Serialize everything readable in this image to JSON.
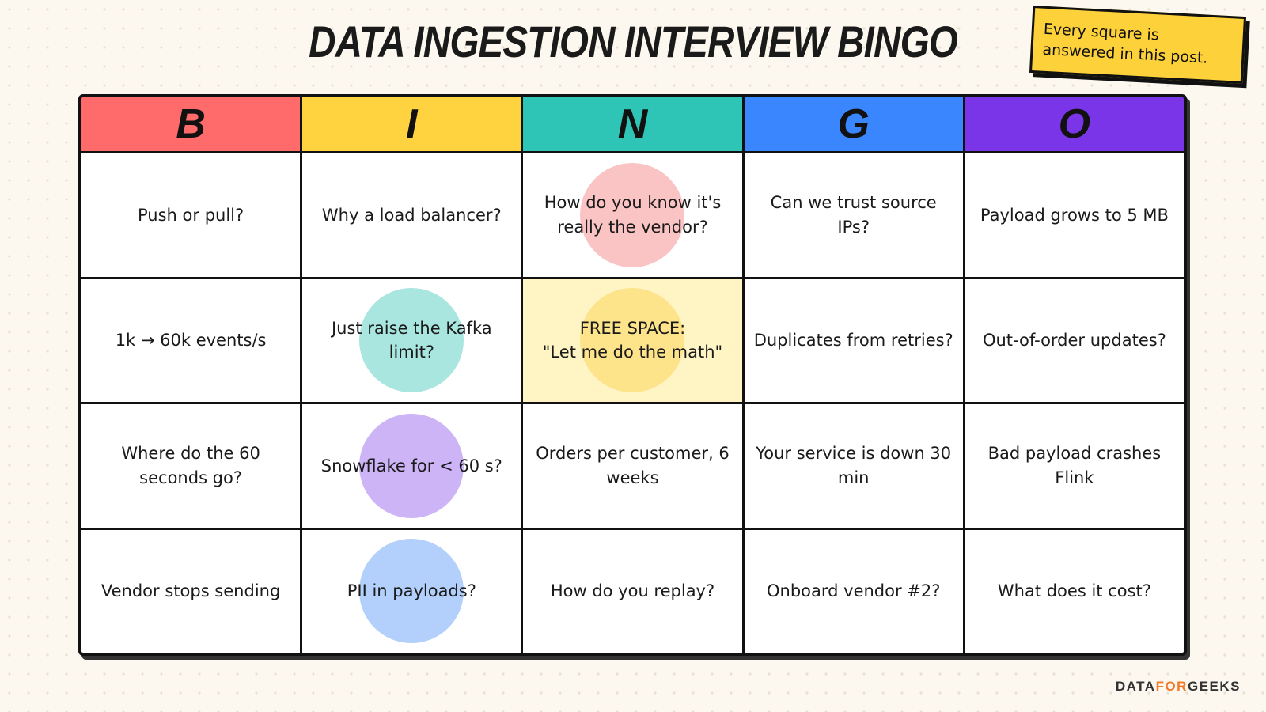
{
  "title": "DATA INGESTION INTERVIEW BINGO",
  "note": "Every square is answered in this post.",
  "header": [
    "B",
    "I",
    "N",
    "G",
    "O"
  ],
  "rows": [
    [
      "Push or pull?",
      "Why a load balancer?",
      "How do you know it's really the vendor?",
      "Can we trust source IPs?",
      "Payload grows to 5 MB"
    ],
    [
      "1k → 60k events/s",
      "Just raise the Kafka limit?",
      "FREE SPACE:\n\"Let me do the math\"",
      "Duplicates from retries?",
      "Out-of-order updates?"
    ],
    [
      "Where do the 60 seconds go?",
      "Snowflake for < 60 s?",
      "Orders per customer, 6 weeks",
      "Your service is down 30 min",
      "Bad payload crashes Flink"
    ],
    [
      "Vendor stops sending",
      "PII in payloads?",
      "How do you replay?",
      "Onboard vendor #2?",
      "What does it cost?"
    ]
  ],
  "brand": [
    "DATA",
    "FOR",
    "GEEKS"
  ]
}
